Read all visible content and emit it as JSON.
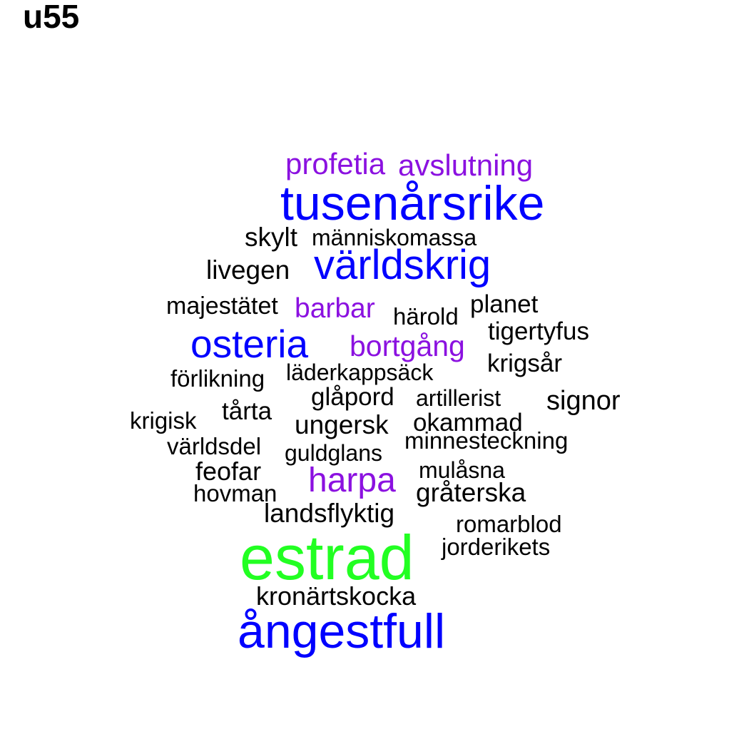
{
  "title": "u55",
  "colors": {
    "black": "#000000",
    "blue": "#0000ff",
    "purple": "#8b11e0",
    "green": "#22ff22"
  },
  "words": [
    {
      "key": "profetia",
      "text": "profetia",
      "color": "purple"
    },
    {
      "key": "avslutning",
      "text": "avslutning",
      "color": "purple"
    },
    {
      "key": "tusenarsrike",
      "text": "tusenårsrike",
      "color": "blue"
    },
    {
      "key": "skylt",
      "text": "skylt",
      "color": "black"
    },
    {
      "key": "manniskomassa",
      "text": "människomassa",
      "color": "black"
    },
    {
      "key": "varldskrig",
      "text": "världskrig",
      "color": "blue"
    },
    {
      "key": "livegen",
      "text": "livegen",
      "color": "black"
    },
    {
      "key": "majestatet",
      "text": "majestätet",
      "color": "black"
    },
    {
      "key": "barbar",
      "text": "barbar",
      "color": "purple"
    },
    {
      "key": "harold",
      "text": "härold",
      "color": "black"
    },
    {
      "key": "planet",
      "text": "planet",
      "color": "black"
    },
    {
      "key": "tigertyfus",
      "text": "tigertyfus",
      "color": "black"
    },
    {
      "key": "osteria",
      "text": "osteria",
      "color": "blue"
    },
    {
      "key": "bortgang",
      "text": "bortgång",
      "color": "purple"
    },
    {
      "key": "krigsar",
      "text": "krigsår",
      "color": "black"
    },
    {
      "key": "forlikning",
      "text": "förlikning",
      "color": "black"
    },
    {
      "key": "laderkappsack",
      "text": "läderkappsäck",
      "color": "black"
    },
    {
      "key": "glapord",
      "text": "glåpord",
      "color": "black"
    },
    {
      "key": "artillerist",
      "text": "artillerist",
      "color": "black"
    },
    {
      "key": "signor",
      "text": "signor",
      "color": "black"
    },
    {
      "key": "krigisk",
      "text": "krigisk",
      "color": "black"
    },
    {
      "key": "tarta",
      "text": "tårta",
      "color": "black"
    },
    {
      "key": "ungersk",
      "text": "ungersk",
      "color": "black"
    },
    {
      "key": "okammad",
      "text": "okammad",
      "color": "black"
    },
    {
      "key": "varldsdel",
      "text": "världsdel",
      "color": "black"
    },
    {
      "key": "minnesteckning",
      "text": "minnesteckning",
      "color": "black"
    },
    {
      "key": "guldglans",
      "text": "guldglans",
      "color": "black"
    },
    {
      "key": "feofar",
      "text": "feofar",
      "color": "black"
    },
    {
      "key": "harpa",
      "text": "harpa",
      "color": "purple"
    },
    {
      "key": "mulasna",
      "text": "mulåsna",
      "color": "black"
    },
    {
      "key": "hovman",
      "text": "hovman",
      "color": "black"
    },
    {
      "key": "graterska",
      "text": "gråterska",
      "color": "black"
    },
    {
      "key": "landsflyktig",
      "text": "landsflyktig",
      "color": "black"
    },
    {
      "key": "romarblod",
      "text": "romarblod",
      "color": "black"
    },
    {
      "key": "estrad",
      "text": "estrad",
      "color": "green"
    },
    {
      "key": "jorderikets",
      "text": "jorderikets",
      "color": "black"
    },
    {
      "key": "kronartskocka",
      "text": "kronärtskocka",
      "color": "black"
    },
    {
      "key": "angestfull",
      "text": "ångestfull",
      "color": "blue"
    }
  ]
}
